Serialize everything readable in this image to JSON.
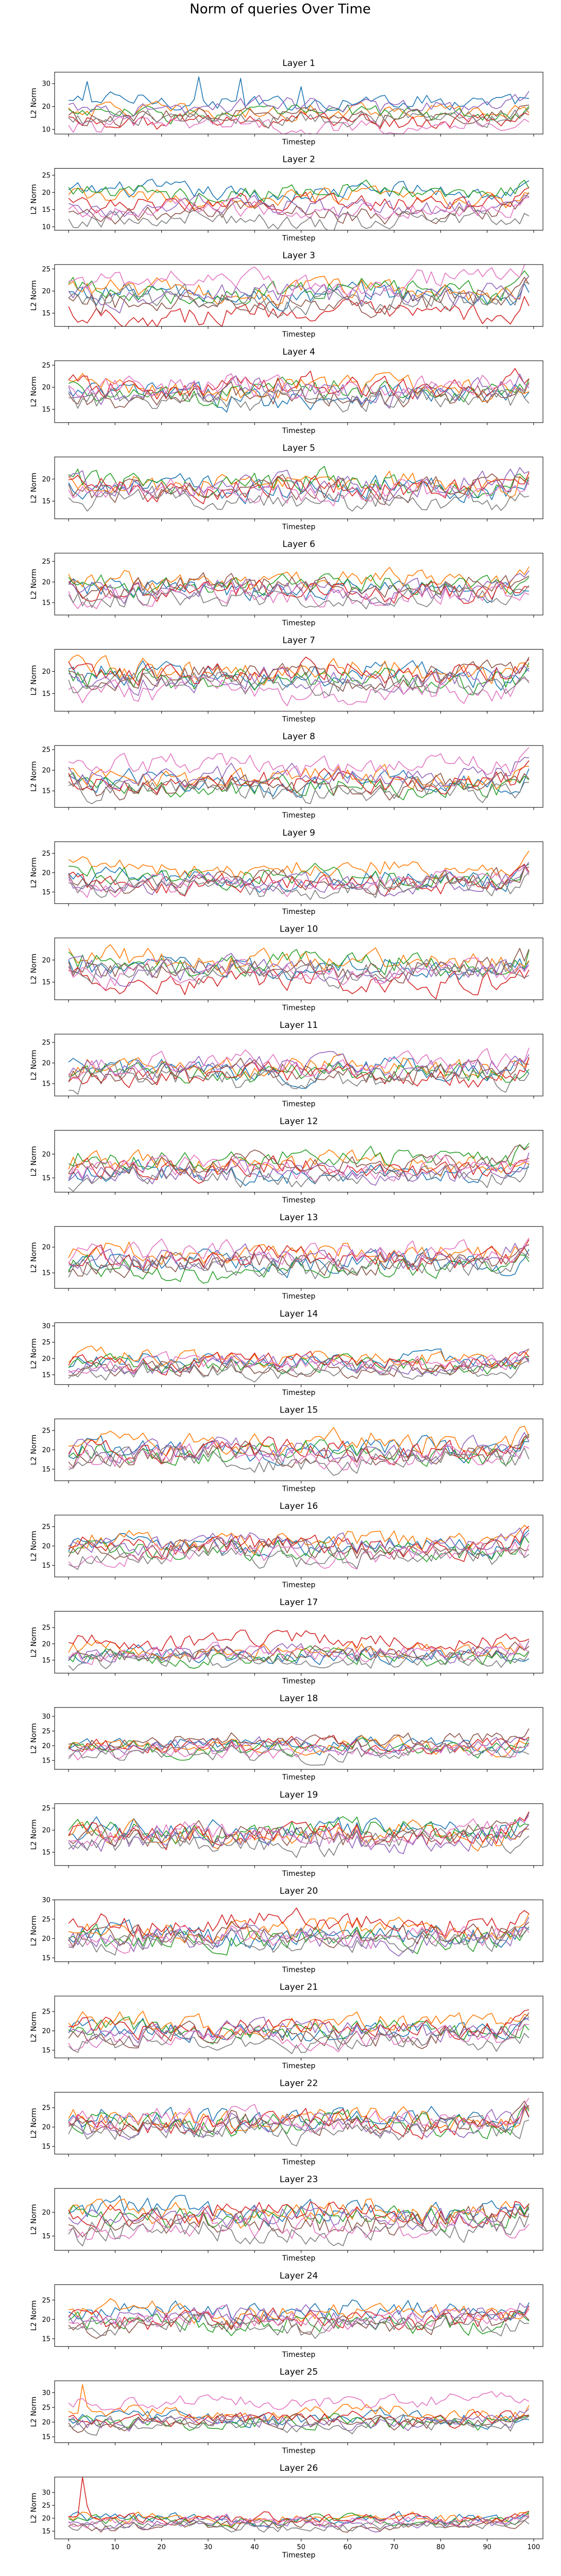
{
  "chart_data": {
    "type": "line",
    "title": "Norm of queries Over Time",
    "xlabel": "Timestep",
    "ylabel": "L2 Norm",
    "xlim": [
      -3,
      102
    ],
    "xticks": [
      0,
      10,
      20,
      30,
      40,
      50,
      60,
      70,
      80,
      90,
      100
    ],
    "xtick_labels_shown_on_last_panel_only": true,
    "num_points": 100,
    "series_colors": [
      "#1f77b4",
      "#ff7f0e",
      "#2ca02c",
      "#d62728",
      "#9467bd",
      "#8c564b",
      "#e377c2",
      "#7f7f7f"
    ],
    "panels": [
      {
        "title": "Layer 1",
        "ylim": [
          8,
          35
        ],
        "yticks": [
          10,
          20,
          30
        ],
        "series_base": [
          22,
          18,
          17,
          14,
          20,
          16,
          12,
          15
        ],
        "amp": 3,
        "spike": {
          "series": 0,
          "height": 10,
          "prob": 0.06
        }
      },
      {
        "title": "Layer 2",
        "ylim": [
          9,
          27
        ],
        "yticks": [
          10,
          15,
          20,
          25
        ],
        "series_base": [
          20,
          18,
          20,
          17,
          16,
          14,
          15,
          12
        ],
        "amp": 2.2,
        "spike": null
      },
      {
        "title": "Layer 3",
        "ylim": [
          12,
          26
        ],
        "yticks": [
          15,
          20,
          25
        ],
        "series_base": [
          19,
          20,
          20,
          15,
          19,
          18,
          22,
          18
        ],
        "amp": 2.2,
        "spike": null
      },
      {
        "title": "Layer 4",
        "ylim": [
          12,
          26
        ],
        "yticks": [
          15,
          20,
          25
        ],
        "series_base": [
          18,
          20,
          19,
          20,
          19,
          18,
          20,
          17
        ],
        "amp": 2.2,
        "spike": null
      },
      {
        "title": "Layer 5",
        "ylim": [
          11,
          25
        ],
        "yticks": [
          15,
          20
        ],
        "series_base": [
          18,
          19,
          19,
          18,
          19,
          18,
          17,
          15
        ],
        "amp": 2.2,
        "spike": null
      },
      {
        "title": "Layer 6",
        "ylim": [
          12,
          27
        ],
        "yticks": [
          15,
          20,
          25
        ],
        "series_base": [
          18,
          20,
          19,
          18,
          18,
          19,
          17,
          16
        ],
        "amp": 2.2,
        "spike": null
      },
      {
        "title": "Layer 7",
        "ylim": [
          11,
          25
        ],
        "yticks": [
          15,
          20
        ],
        "series_base": [
          19,
          20,
          18,
          20,
          18,
          19,
          15,
          17
        ],
        "amp": 2.2,
        "spike": null
      },
      {
        "title": "Layer 8",
        "ylim": [
          11,
          26
        ],
        "yticks": [
          15,
          20,
          25
        ],
        "series_base": [
          17,
          18,
          16,
          17,
          19,
          16,
          21,
          15
        ],
        "amp": 2.2,
        "spike": null
      },
      {
        "title": "Layer 9",
        "ylim": [
          12,
          28
        ],
        "yticks": [
          15,
          20,
          25
        ],
        "series_base": [
          18,
          21,
          19,
          17,
          17,
          18,
          17,
          16
        ],
        "amp": 2.2,
        "spike": null
      },
      {
        "title": "Layer 10",
        "ylim": [
          11,
          25
        ],
        "yticks": [
          15,
          20
        ],
        "series_base": [
          18,
          20,
          19,
          15,
          18,
          18,
          17,
          17
        ],
        "amp": 2.2,
        "spike": null
      },
      {
        "title": "Layer 11",
        "ylim": [
          12,
          27
        ],
        "yticks": [
          15,
          20,
          25
        ],
        "series_base": [
          18,
          19,
          18,
          17,
          19,
          18,
          20,
          16
        ],
        "amp": 2.2,
        "spike": null
      },
      {
        "title": "Layer 12",
        "ylim": [
          12,
          25
        ],
        "yticks": [
          15,
          20
        ],
        "series_base": [
          16,
          18,
          19,
          17,
          16,
          18,
          17,
          15
        ],
        "amp": 1.8,
        "spike": null
      },
      {
        "title": "Layer 13",
        "ylim": [
          12,
          24
        ],
        "yticks": [
          15,
          20
        ],
        "series_base": [
          17,
          19,
          16,
          18,
          18,
          17,
          19,
          16
        ],
        "amp": 1.8,
        "spike": null
      },
      {
        "title": "Layer 14",
        "ylim": [
          12,
          31
        ],
        "yticks": [
          15,
          20,
          25,
          30
        ],
        "series_base": [
          19,
          20,
          18,
          19,
          18,
          17,
          18,
          16
        ],
        "amp": 2.2,
        "spike": null
      },
      {
        "title": "Layer 15",
        "ylim": [
          12,
          28
        ],
        "yticks": [
          15,
          20,
          25
        ],
        "series_base": [
          20,
          22,
          19,
          20,
          20,
          19,
          18,
          17
        ],
        "amp": 2.4,
        "spike": null
      },
      {
        "title": "Layer 16",
        "ylim": [
          12,
          28
        ],
        "yticks": [
          15,
          20,
          25
        ],
        "series_base": [
          20,
          21,
          19,
          20,
          21,
          19,
          18,
          17
        ],
        "amp": 2.2,
        "spike": null
      },
      {
        "title": "Layer 17",
        "ylim": [
          11,
          30
        ],
        "yticks": [
          15,
          20,
          25
        ],
        "series_base": [
          16,
          18,
          16,
          21,
          17,
          17,
          17,
          15
        ],
        "amp": 2.2,
        "spike": null
      },
      {
        "title": "Layer 18",
        "ylim": [
          12,
          33
        ],
        "yticks": [
          15,
          20,
          25,
          30
        ],
        "series_base": [
          20,
          20,
          19,
          20,
          20,
          22,
          18,
          17
        ],
        "amp": 2.2,
        "spike": null
      },
      {
        "title": "Layer 19",
        "ylim": [
          12,
          26
        ],
        "yticks": [
          15,
          20,
          25
        ],
        "series_base": [
          20,
          19,
          20,
          19,
          18,
          19,
          19,
          17
        ],
        "amp": 2.2,
        "spike": null
      },
      {
        "title": "Layer 20",
        "ylim": [
          14,
          30
        ],
        "yticks": [
          15,
          20,
          25,
          30
        ],
        "series_base": [
          21,
          22,
          20,
          24,
          20,
          21,
          20,
          19
        ],
        "amp": 2.4,
        "spike": null
      },
      {
        "title": "Layer 21",
        "ylim": [
          13,
          29
        ],
        "yticks": [
          15,
          20,
          25
        ],
        "series_base": [
          20,
          22,
          20,
          21,
          20,
          19,
          18,
          17
        ],
        "amp": 2.2,
        "spike": null
      },
      {
        "title": "Layer 22",
        "ylim": [
          13,
          29
        ],
        "yticks": [
          15,
          20,
          25
        ],
        "series_base": [
          22,
          22,
          21,
          21,
          21,
          21,
          22,
          19
        ],
        "amp": 2.4,
        "spike": null
      },
      {
        "title": "Layer 23",
        "ylim": [
          12,
          25
        ],
        "yticks": [
          15,
          20
        ],
        "series_base": [
          20,
          20,
          19,
          20,
          19,
          18,
          17,
          16
        ],
        "amp": 2.2,
        "spike": null
      },
      {
        "title": "Layer 24",
        "ylim": [
          13,
          29
        ],
        "yticks": [
          15,
          20,
          25
        ],
        "series_base": [
          22,
          22,
          19,
          20,
          21,
          19,
          20,
          18
        ],
        "amp": 2.2,
        "spike": null
      },
      {
        "title": "Layer 25",
        "ylim": [
          13,
          34
        ],
        "yticks": [
          15,
          20,
          25,
          30
        ],
        "series_base": [
          21,
          23,
          20,
          21,
          20,
          20,
          27,
          19
        ],
        "amp": 2.2,
        "spike": {
          "series": 1,
          "height": 10,
          "prob": 0.0
        }
      },
      {
        "title": "Layer 26",
        "ylim": [
          12,
          36
        ],
        "yticks": [
          15,
          20,
          25,
          30
        ],
        "series_base": [
          20,
          20,
          19,
          20,
          18,
          17,
          19,
          17
        ],
        "amp": 1.8,
        "spike": {
          "series": 3,
          "height": 14,
          "prob": 0.0
        }
      }
    ]
  }
}
